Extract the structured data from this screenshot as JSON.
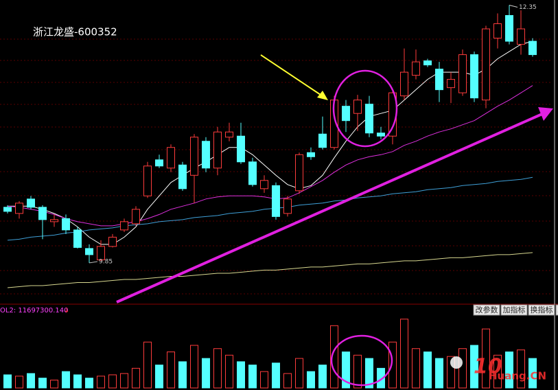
{
  "chart_data": [
    {
      "type": "candlestick",
      "title": "浙江龙盛-600352",
      "open": [
        10.39,
        10.33,
        10.47,
        10.39,
        10.25,
        10.28,
        10.17,
        9.99,
        9.88,
        10.01,
        10.17,
        10.23,
        10.5,
        10.85,
        10.77,
        10.8,
        10.7,
        11.03,
        10.77,
        11.07,
        11.08,
        10.83,
        10.57,
        10.6,
        10.33,
        10.55,
        10.92,
        11.1,
        10.97,
        11.37,
        11.3,
        11.39,
        11.11,
        11.08,
        11.47,
        11.67,
        11.81,
        11.73,
        11.55,
        11.5,
        11.87,
        11.43,
        12.03,
        12.25,
        11.97,
        12.0
      ],
      "high": [
        10.41,
        10.45,
        10.5,
        10.41,
        10.32,
        10.32,
        10.2,
        10.03,
        10.07,
        10.13,
        10.28,
        10.4,
        10.83,
        10.9,
        11.0,
        10.83,
        11.1,
        11.07,
        11.17,
        11.21,
        11.21,
        10.87,
        10.7,
        10.63,
        10.5,
        10.92,
        10.97,
        11.27,
        11.47,
        11.43,
        11.48,
        11.47,
        11.17,
        11.53,
        11.93,
        11.92,
        11.83,
        11.8,
        11.7,
        11.92,
        11.9,
        12.15,
        12.27,
        12.35,
        12.3,
        12.03
      ],
      "low": [
        10.33,
        10.28,
        10.37,
        10.08,
        10.2,
        10.13,
        9.99,
        9.85,
        9.87,
        10.0,
        10.15,
        10.21,
        10.48,
        10.77,
        10.73,
        10.55,
        10.43,
        10.73,
        10.7,
        11.03,
        10.81,
        10.59,
        10.53,
        10.27,
        10.3,
        10.52,
        10.85,
        10.95,
        10.95,
        11.12,
        11.13,
        11.07,
        11.05,
        11.0,
        11.43,
        11.63,
        11.75,
        11.41,
        11.4,
        11.47,
        11.41,
        11.35,
        11.93,
        11.97,
        11.87,
        11.85
      ],
      "close": [
        10.35,
        10.43,
        10.39,
        10.27,
        10.27,
        10.17,
        10.0,
        9.93,
        10.01,
        10.1,
        10.25,
        10.37,
        10.79,
        10.79,
        10.97,
        10.57,
        11.07,
        10.77,
        11.12,
        11.12,
        10.83,
        10.61,
        10.65,
        10.3,
        10.47,
        10.9,
        10.88,
        10.97,
        11.43,
        11.23,
        11.43,
        11.11,
        11.08,
        11.5,
        11.7,
        11.8,
        11.77,
        11.53,
        11.63,
        11.87,
        11.45,
        12.12,
        12.17,
        12.0,
        12.12,
        11.87
      ],
      "up_color": "#ff3c3c",
      "down_color": "#54ffff",
      "ylim": [
        9.47,
        12.4
      ],
      "high_label": "12.35",
      "low_label": "9.85",
      "series": [
        {
          "color": "#ffffff",
          "values": [
            10.4,
            10.4,
            10.4,
            10.37,
            10.33,
            10.28,
            10.2,
            10.1,
            10.03,
            10.03,
            10.1,
            10.2,
            10.37,
            10.5,
            10.63,
            10.7,
            10.77,
            10.83,
            10.9,
            10.97,
            10.97,
            10.9,
            10.8,
            10.7,
            10.61,
            10.57,
            10.6,
            10.7,
            10.87,
            11.03,
            11.17,
            11.27,
            11.3,
            11.33,
            11.43,
            11.53,
            11.63,
            11.7,
            11.7,
            11.7,
            11.67,
            11.73,
            11.83,
            11.9,
            11.97,
            12.0
          ]
        },
        {
          "color": "#e030e0",
          "values": [
            10.4,
            10.39,
            10.37,
            10.35,
            10.32,
            10.28,
            10.25,
            10.23,
            10.21,
            10.21,
            10.23,
            10.25,
            10.28,
            10.32,
            10.37,
            10.4,
            10.43,
            10.47,
            10.49,
            10.5,
            10.5,
            10.5,
            10.49,
            10.47,
            10.48,
            10.53,
            10.59,
            10.65,
            10.73,
            10.8,
            10.85,
            10.88,
            10.9,
            10.93,
            10.99,
            11.03,
            11.08,
            11.12,
            11.15,
            11.19,
            11.23,
            11.3,
            11.37,
            11.43,
            11.5,
            11.57
          ]
        },
        {
          "color": "#3fa0d8",
          "values": [
            10.07,
            10.08,
            10.1,
            10.11,
            10.12,
            10.14,
            10.15,
            10.17,
            10.18,
            10.19,
            10.21,
            10.22,
            10.23,
            10.25,
            10.26,
            10.27,
            10.29,
            10.3,
            10.31,
            10.33,
            10.34,
            10.35,
            10.37,
            10.38,
            10.39,
            10.41,
            10.42,
            10.43,
            10.45,
            10.46,
            10.48,
            10.49,
            10.5,
            10.52,
            10.53,
            10.54,
            10.56,
            10.57,
            10.58,
            10.6,
            10.61,
            10.62,
            10.64,
            10.65,
            10.66,
            10.68
          ]
        },
        {
          "color": "#d8d890",
          "values": [
            9.61,
            9.62,
            9.63,
            9.63,
            9.64,
            9.65,
            9.66,
            9.66,
            9.67,
            9.68,
            9.69,
            9.69,
            9.7,
            9.71,
            9.72,
            9.72,
            9.73,
            9.74,
            9.75,
            9.75,
            9.76,
            9.77,
            9.78,
            9.78,
            9.79,
            9.8,
            9.81,
            9.81,
            9.82,
            9.83,
            9.84,
            9.84,
            9.85,
            9.86,
            9.87,
            9.87,
            9.88,
            9.89,
            9.9,
            9.9,
            9.91,
            9.92,
            9.93,
            9.93,
            9.94,
            9.95
          ]
        }
      ]
    },
    {
      "type": "bar",
      "label": "OL2: 11697300.140",
      "label_arrow": "↓",
      "values": [
        20,
        18,
        22,
        15,
        12,
        25,
        20,
        15,
        18,
        20,
        22,
        30,
        70,
        35,
        55,
        40,
        65,
        45,
        60,
        50,
        40,
        35,
        25,
        38,
        22,
        45,
        25,
        35,
        95,
        55,
        50,
        45,
        30,
        70,
        105,
        60,
        55,
        45,
        48,
        60,
        65,
        90,
        50,
        55,
        58,
        45
      ],
      "ylim": [
        0,
        110
      ]
    }
  ],
  "toolbar": [
    "改参数",
    "加指标",
    "换指标",
    "X"
  ],
  "watermark": {
    "number": "10",
    "text": "Huang.CN"
  }
}
